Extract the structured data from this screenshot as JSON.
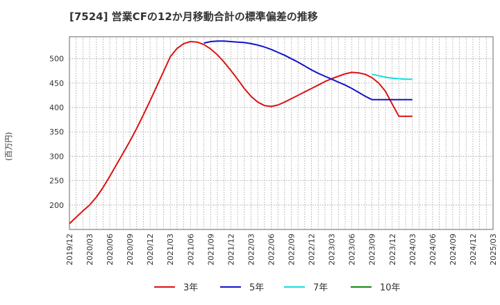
{
  "chart_data": {
    "type": "line",
    "title": "[7524]  営業CFの12か月移動合計の標準偏差の推移",
    "ylabel": "(百万円)",
    "xlabel": "",
    "ylim": [
      150,
      545
    ],
    "yticks": [
      200,
      250,
      300,
      350,
      400,
      450,
      500
    ],
    "xticks": [
      "2019/12",
      "2020/03",
      "2020/06",
      "2020/09",
      "2020/12",
      "2021/03",
      "2021/06",
      "2021/09",
      "2021/12",
      "2022/03",
      "2022/06",
      "2022/09",
      "2022/12",
      "2023/03",
      "2023/06",
      "2023/09",
      "2023/12",
      "2024/03",
      "2024/06",
      "2024/09",
      "2024/12",
      "2025/03"
    ],
    "grid": true,
    "legend_position": "bottom",
    "series": [
      {
        "name": "3年",
        "color": "#dd1111",
        "x": [
          "2019/12",
          "2020/01",
          "2020/02",
          "2020/03",
          "2020/04",
          "2020/05",
          "2020/06",
          "2020/07",
          "2020/08",
          "2020/09",
          "2020/10",
          "2020/11",
          "2020/12",
          "2021/01",
          "2021/02",
          "2021/03",
          "2021/04",
          "2021/05",
          "2021/06",
          "2021/07",
          "2021/08",
          "2021/09",
          "2021/10",
          "2021/11",
          "2021/12",
          "2022/01",
          "2022/02",
          "2022/03",
          "2022/04",
          "2022/05",
          "2022/06",
          "2022/07",
          "2022/08",
          "2022/09",
          "2022/10",
          "2022/11",
          "2022/12",
          "2023/01",
          "2023/02",
          "2023/03",
          "2023/04",
          "2023/05",
          "2023/06",
          "2023/07",
          "2023/08",
          "2023/09",
          "2023/10",
          "2023/11",
          "2023/12",
          "2024/01",
          "2024/02",
          "2024/03"
        ],
        "values": [
          162,
          175,
          188,
          200,
          216,
          236,
          259,
          283,
          307,
          331,
          357,
          385,
          414,
          444,
          474,
          504,
          521,
          531,
          535,
          534,
          529,
          520,
          508,
          493,
          476,
          458,
          439,
          423,
          411,
          404,
          402,
          405,
          411,
          418,
          425,
          432,
          439,
          446,
          453,
          459,
          464,
          469,
          472,
          471,
          468,
          461,
          450,
          433,
          407,
          382,
          382,
          382
        ]
      },
      {
        "name": "5年",
        "color": "#1111cc",
        "x": [
          "2021/08",
          "2021/09",
          "2021/10",
          "2021/11",
          "2021/12",
          "2022/01",
          "2022/02",
          "2022/03",
          "2022/04",
          "2022/05",
          "2022/06",
          "2022/07",
          "2022/08",
          "2022/09",
          "2022/10",
          "2022/11",
          "2022/12",
          "2023/01",
          "2023/02",
          "2023/03",
          "2023/04",
          "2023/05",
          "2023/06",
          "2023/07",
          "2023/08",
          "2023/09",
          "2023/10",
          "2023/11",
          "2023/12",
          "2024/01",
          "2024/02",
          "2024/03"
        ],
        "values": [
          532,
          535,
          536,
          536,
          535,
          534,
          533,
          531,
          528,
          524,
          519,
          513,
          507,
          500,
          493,
          485,
          477,
          470,
          464,
          458,
          452,
          446,
          439,
          431,
          423,
          416,
          416,
          416,
          416,
          416,
          416,
          416
        ]
      },
      {
        "name": "7年",
        "color": "#11dddd",
        "x": [
          "2023/09",
          "2023/10",
          "2023/11",
          "2023/12",
          "2024/01",
          "2024/02",
          "2024/03"
        ],
        "values": [
          468,
          465,
          462,
          460,
          459,
          458,
          458
        ]
      },
      {
        "name": "10年",
        "color": "#118811",
        "x": [],
        "values": []
      }
    ]
  }
}
